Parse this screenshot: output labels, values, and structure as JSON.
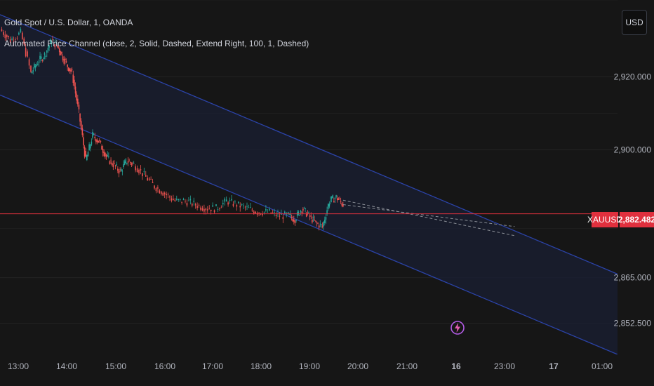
{
  "legend": {
    "title": "Gold Spot / U.S. Dollar, 1, OANDA",
    "indicator": "Automated Price Channel (close, 2, Solid, Dashed, Extend Right, 100, 1, Dashed)"
  },
  "currency_button": "USD",
  "current_price": {
    "symbol": "XAUUSD",
    "value": "2,882.482",
    "color": "#e0303e"
  },
  "colors": {
    "background": "#161616",
    "channel_line": "#2b43a8",
    "channel_fill": "#1a1f33",
    "up_candle": "#26a69a",
    "down_candle": "#ef5350"
  },
  "chart_data": {
    "type": "candlestick",
    "symbol": "XAUUSD",
    "timeframe": "1",
    "x_ticks": [
      "13:00",
      "14:00",
      "15:00",
      "16:00",
      "17:00",
      "18:00",
      "19:00",
      "20:00",
      "21:00",
      "16",
      "23:00",
      "17",
      "01:00"
    ],
    "y_ticks": [
      "2,920.000",
      "2,900.000",
      "2,865.000",
      "2,852.500"
    ],
    "ylim": [
      2844.0,
      2941.0
    ],
    "last_price": 2882.482,
    "price_line": {
      "x": [
        0,
        3,
        6,
        9,
        11,
        13,
        15,
        17,
        19,
        21,
        23,
        25,
        27,
        29,
        31,
        33,
        35,
        37,
        39,
        42,
        45,
        48,
        51,
        54,
        57,
        60,
        63,
        66,
        69,
        72,
        75,
        78,
        81,
        84,
        86,
        88,
        90,
        92,
        94,
        96,
        98,
        100
      ],
      "y": [
        2933,
        2930,
        2932,
        2921,
        2924,
        2926,
        2930,
        2928,
        2924,
        2921,
        2910,
        2897,
        2904,
        2902,
        2898,
        2896,
        2894,
        2897,
        2896,
        2893,
        2890,
        2888,
        2886,
        2886,
        2885,
        2884,
        2884,
        2886,
        2885,
        2884,
        2883,
        2883,
        2882,
        2882,
        2881,
        2884,
        2882,
        2880,
        2879,
        2886,
        2887,
        2885
      ]
    },
    "channel": {
      "upper": {
        "x": [
          0,
          180
        ],
        "y": [
          2937,
          2866
        ]
      },
      "middle": {
        "x": [
          0,
          180
        ],
        "y": [
          2926,
          2855
        ]
      },
      "lower": {
        "x": [
          0,
          180
        ],
        "y": [
          2915,
          2844
        ]
      }
    },
    "regression_dashed": {
      "x": [
        100,
        150
      ],
      "y": [
        2885,
        2879
      ]
    },
    "x_range": [
      0,
      180
    ]
  }
}
